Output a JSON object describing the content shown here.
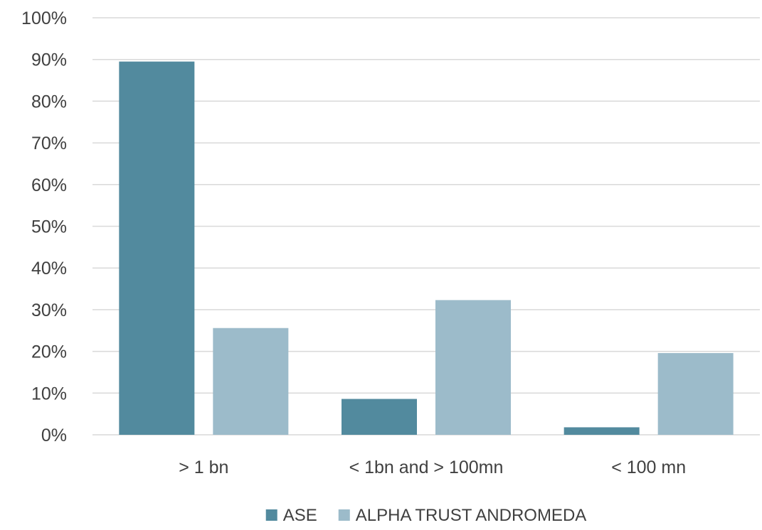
{
  "chart_data": {
    "type": "bar",
    "title": "",
    "xlabel": "",
    "ylabel": "",
    "categories": [
      "> 1 bn",
      "< 1bn and > 100mn",
      "< 100 mn"
    ],
    "series": [
      {
        "name": "ASE",
        "values": [
          89.5,
          8.6,
          1.8
        ],
        "color": "#528A9E"
      },
      {
        "name": "ALPHA TRUST ANDROMEDA",
        "values": [
          25.6,
          32.3,
          19.6
        ],
        "color": "#9CBBCA"
      }
    ],
    "ylim": [
      0,
      100
    ],
    "yticks": [
      0,
      10,
      20,
      30,
      40,
      50,
      60,
      70,
      80,
      90,
      100
    ],
    "ytick_labels": [
      "0%",
      "10%",
      "20%",
      "30%",
      "40%",
      "50%",
      "60%",
      "70%",
      "80%",
      "90%",
      "100%"
    ],
    "grid": true,
    "legend_position": "bottom"
  }
}
